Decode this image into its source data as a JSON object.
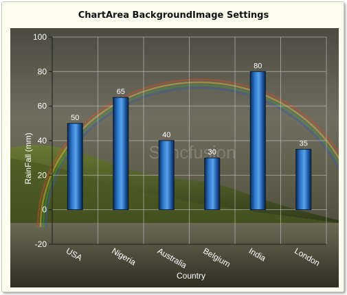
{
  "title": "ChartArea BackgroundImage Settings",
  "watermark": "Syncfusion",
  "chart_data": {
    "type": "bar",
    "title": "ChartArea BackgroundImage Settings",
    "categories": [
      "USA",
      "Nigeria",
      "Australia",
      "Belgium",
      "India",
      "London"
    ],
    "values": [
      50,
      65,
      40,
      30,
      80,
      35
    ],
    "xlabel": "Country",
    "ylabel": "RainFall (mm)",
    "ylim": [
      -20,
      100
    ],
    "yticks": [
      -20,
      0,
      20,
      40,
      60,
      80,
      100
    ],
    "ytick_labels": [
      "-20",
      "0",
      "20",
      "40",
      "60",
      "80",
      "100"
    ],
    "grid": true,
    "series_color": "#1f5fa8"
  }
}
